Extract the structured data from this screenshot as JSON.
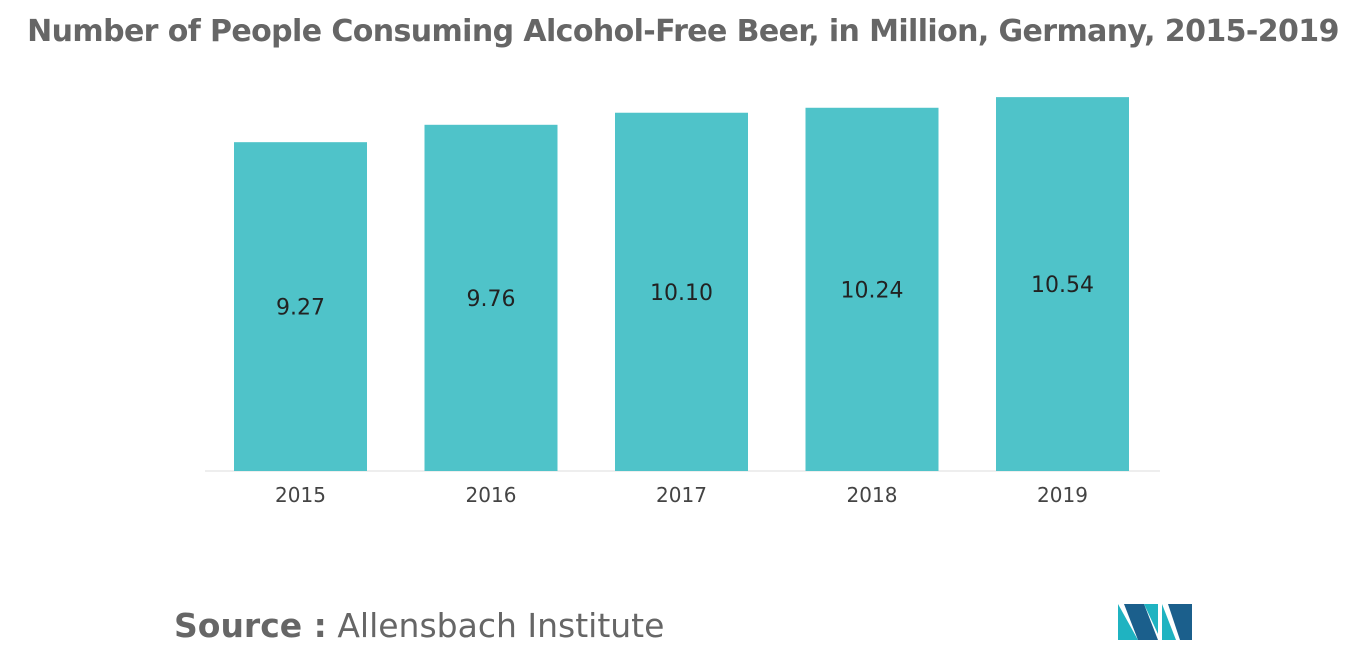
{
  "chart_data": {
    "type": "bar",
    "title": "Number of People Consuming Alcohol-Free Beer, in Million, Germany, 2015-2019",
    "categories": [
      "2015",
      "2016",
      "2017",
      "2018",
      "2019"
    ],
    "values": [
      9.27,
      9.76,
      10.1,
      10.24,
      10.54
    ],
    "value_labels": [
      "9.27",
      "9.76",
      "10.10",
      "10.24",
      "10.54"
    ],
    "xlabel": "",
    "ylabel": "",
    "ylim": [
      0,
      10.6
    ],
    "grid": false,
    "legend": "none",
    "bar_color": "#4fc3c9"
  },
  "source": {
    "label": "Source :",
    "text": " Allensbach Institute"
  },
  "logo": {
    "icon": "mordor-intelligence-logo-icon",
    "colors": [
      "#1fb3c1",
      "#1b5f8c"
    ]
  }
}
